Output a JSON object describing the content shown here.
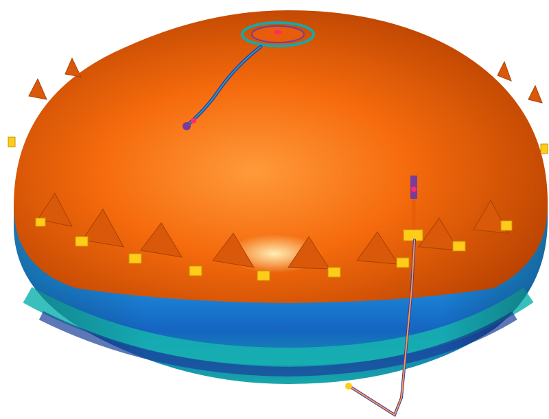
{
  "scene": {
    "subject": "inflatable-dome-render",
    "colors": {
      "background": "#ffffff",
      "dome_orange_light": "#ff8a2a",
      "dome_orange": "#f56a0c",
      "dome_orange_dark": "#c84400",
      "band_blue": "#1d8fe0",
      "band_blue_dark": "#1560b8",
      "band_teal": "#16b4b0",
      "band_navy": "#1a3f99",
      "clip_yellow": "#ffcc1a",
      "cable_purple": "#7a3c9a",
      "ring_teal": "#17a8a8"
    }
  }
}
